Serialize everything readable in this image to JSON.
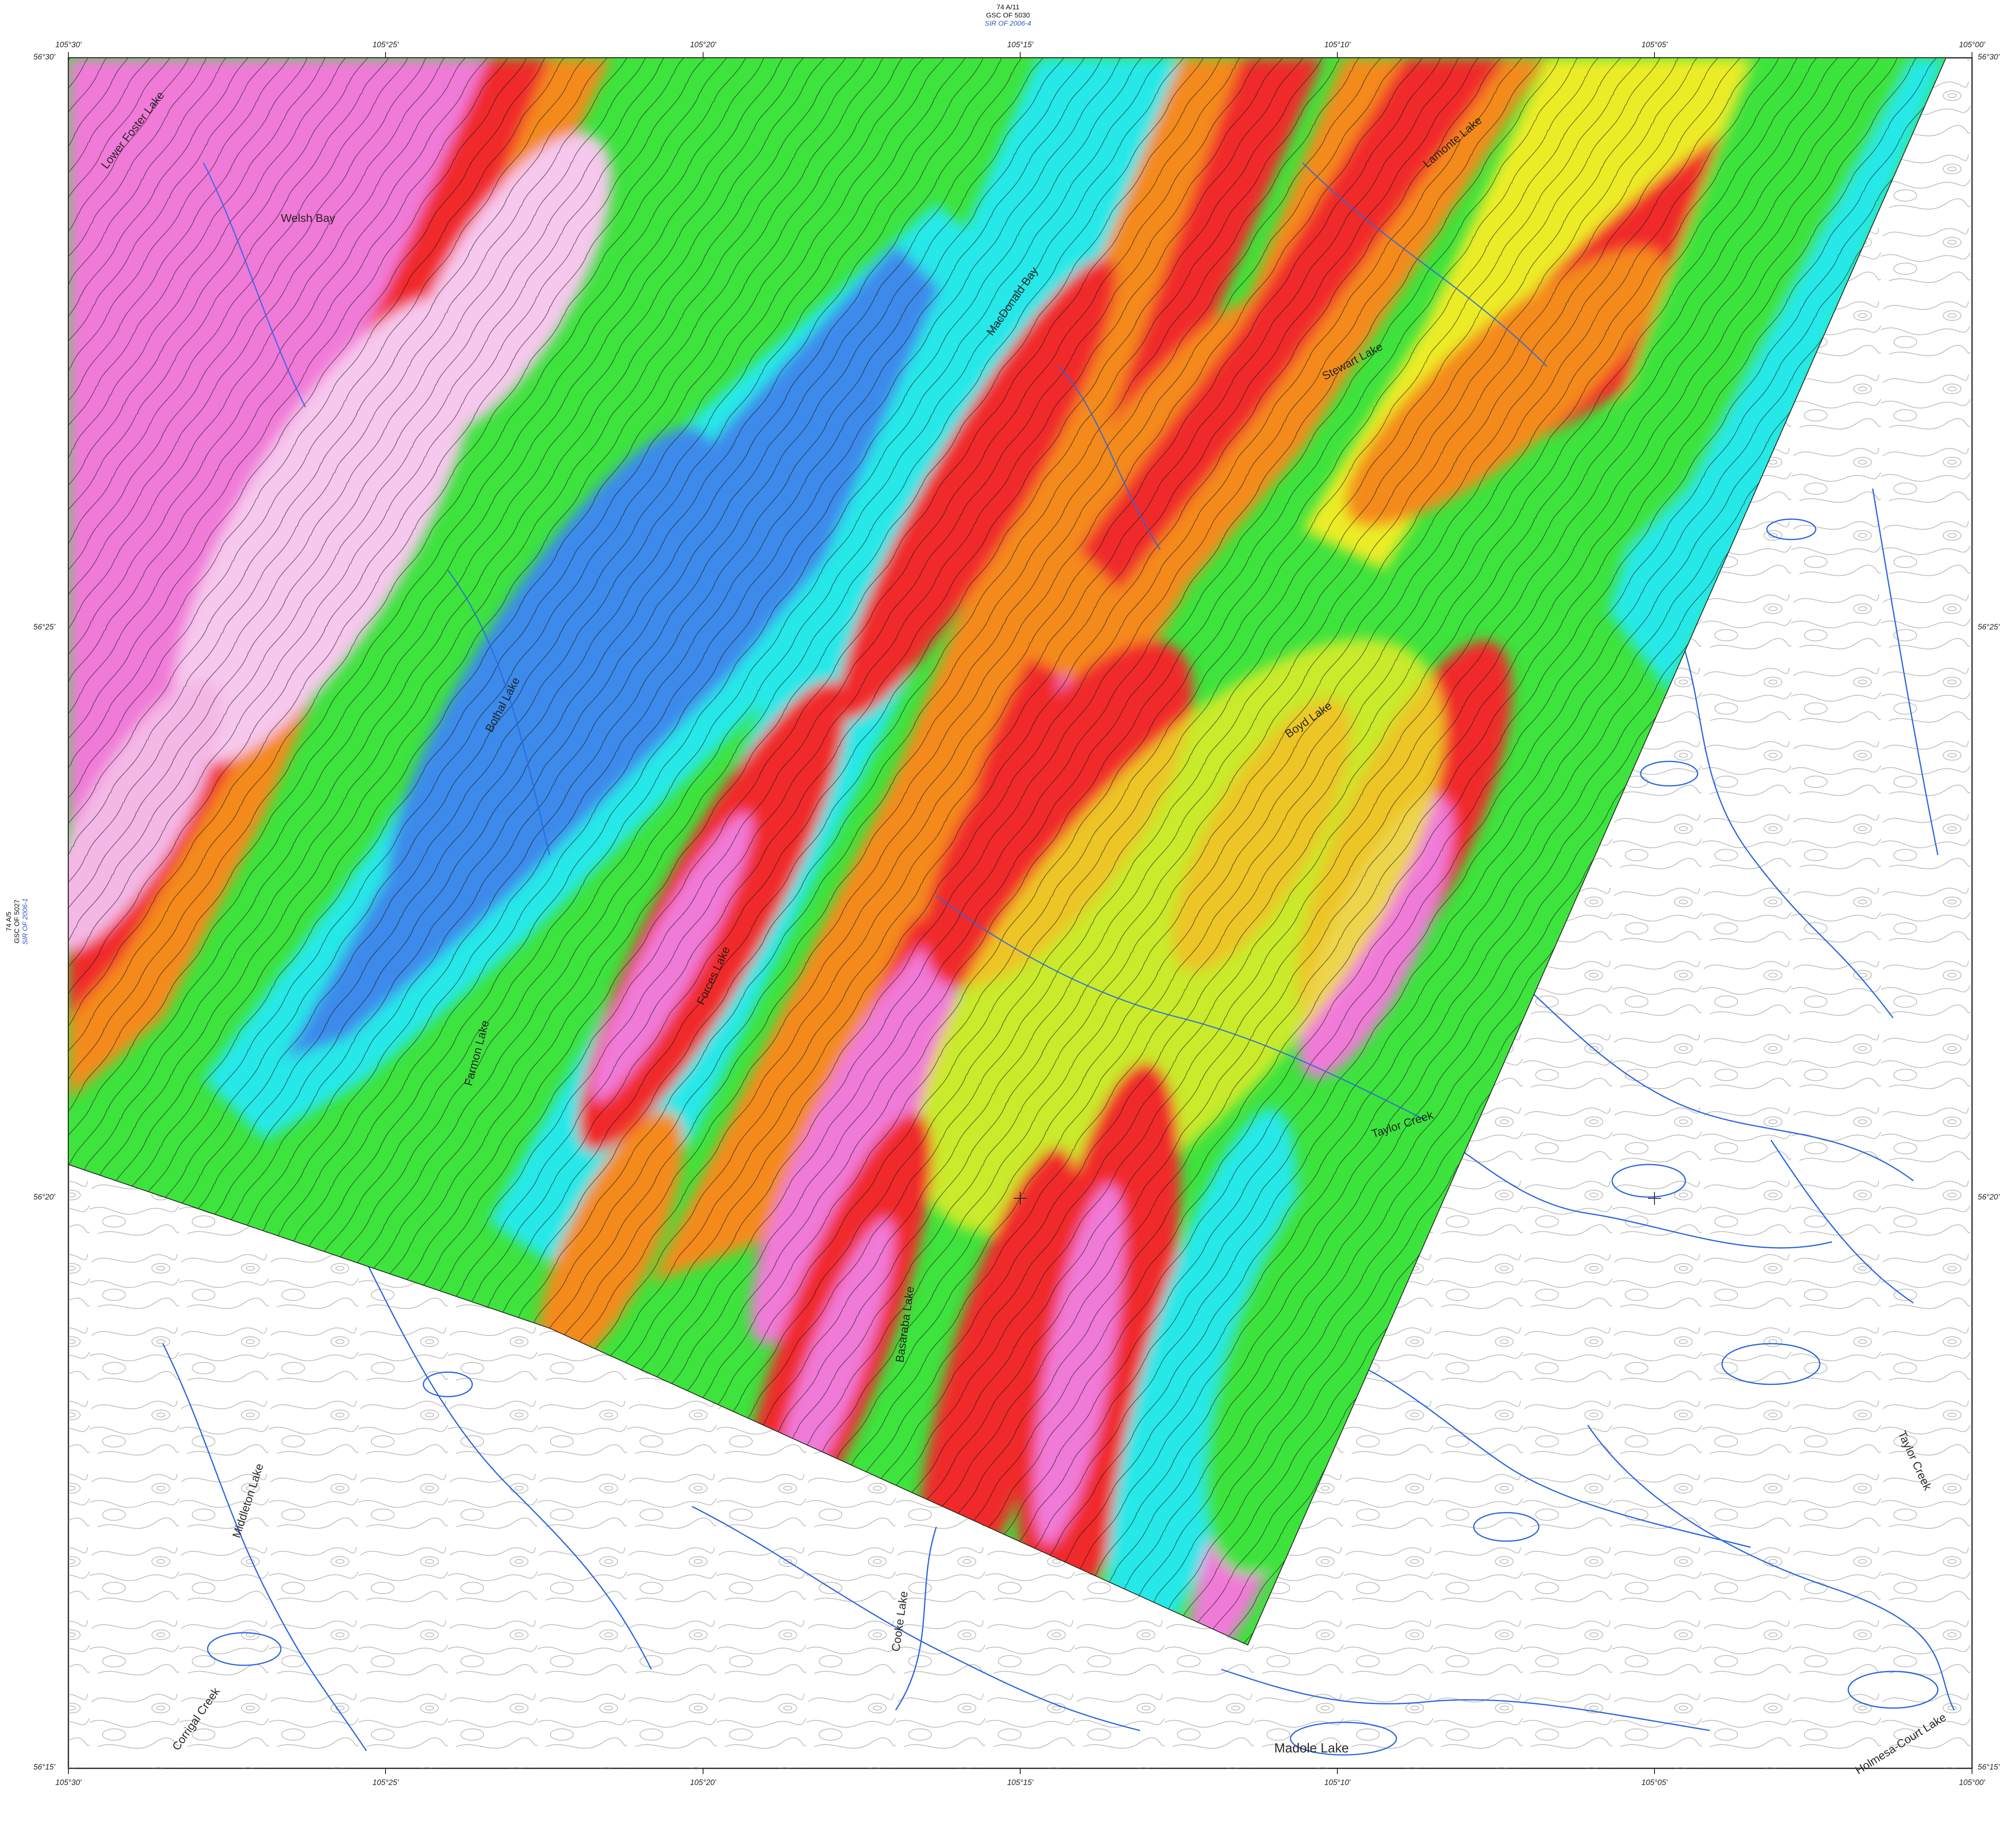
{
  "header": {
    "sheet": "74 A/11",
    "gsc": "GSC OF 5030",
    "sir": "SIR OF 2006-4"
  },
  "left_header": {
    "sheet": "74 A/5",
    "gsc": "GSC OF 5027",
    "sir": "SIR OF 2006-1"
  },
  "longitudes": [
    "105°30'",
    "105°25'",
    "105°20'",
    "105°15'",
    "105°10'",
    "105°05'",
    "105°00'"
  ],
  "latitudes": [
    "56°30'",
    "56°25'",
    "56°20'",
    "56°15'"
  ],
  "places": {
    "lower_foster_lake": "Lower Foster Lake",
    "welsh_bay": "Welsh Bay",
    "macdonald_bay": "MacDonald Bay",
    "stewart_lake": "Stewart Lake",
    "lamonte_lake": "Lamonte Lake",
    "bothal_lake": "Bothal Lake",
    "boyd_lake": "Boyd Lake",
    "farmon_lake": "Farmon Lake",
    "forces_lake": "Forces Lake",
    "taylor_creek": "Taylor Creek",
    "taylor_creek_east": "Taylor Creek",
    "basaraba_lake": "Basaraba Lake",
    "cooke_lake": "Cooke Lake",
    "madole_lake": "Madole Lake",
    "holmesa_court_lake": "Holmesa-Court Lake",
    "corrigal_creek": "Corrigal Creek",
    "middleton_lake": "Middleton Lake"
  },
  "colors": {
    "magenta_high": "#f07ad8",
    "pink_high": "#f23d7a",
    "red": "#f02a2a",
    "orange": "#f48a1e",
    "yellow": "#ecec28",
    "green": "#3ee33e",
    "cyan": "#28e8e8",
    "blue_low": "#3d8aeb",
    "lake_blue": "#2a66e0",
    "contour_gray": "#8a8a8a",
    "contour_black": "#111111"
  }
}
